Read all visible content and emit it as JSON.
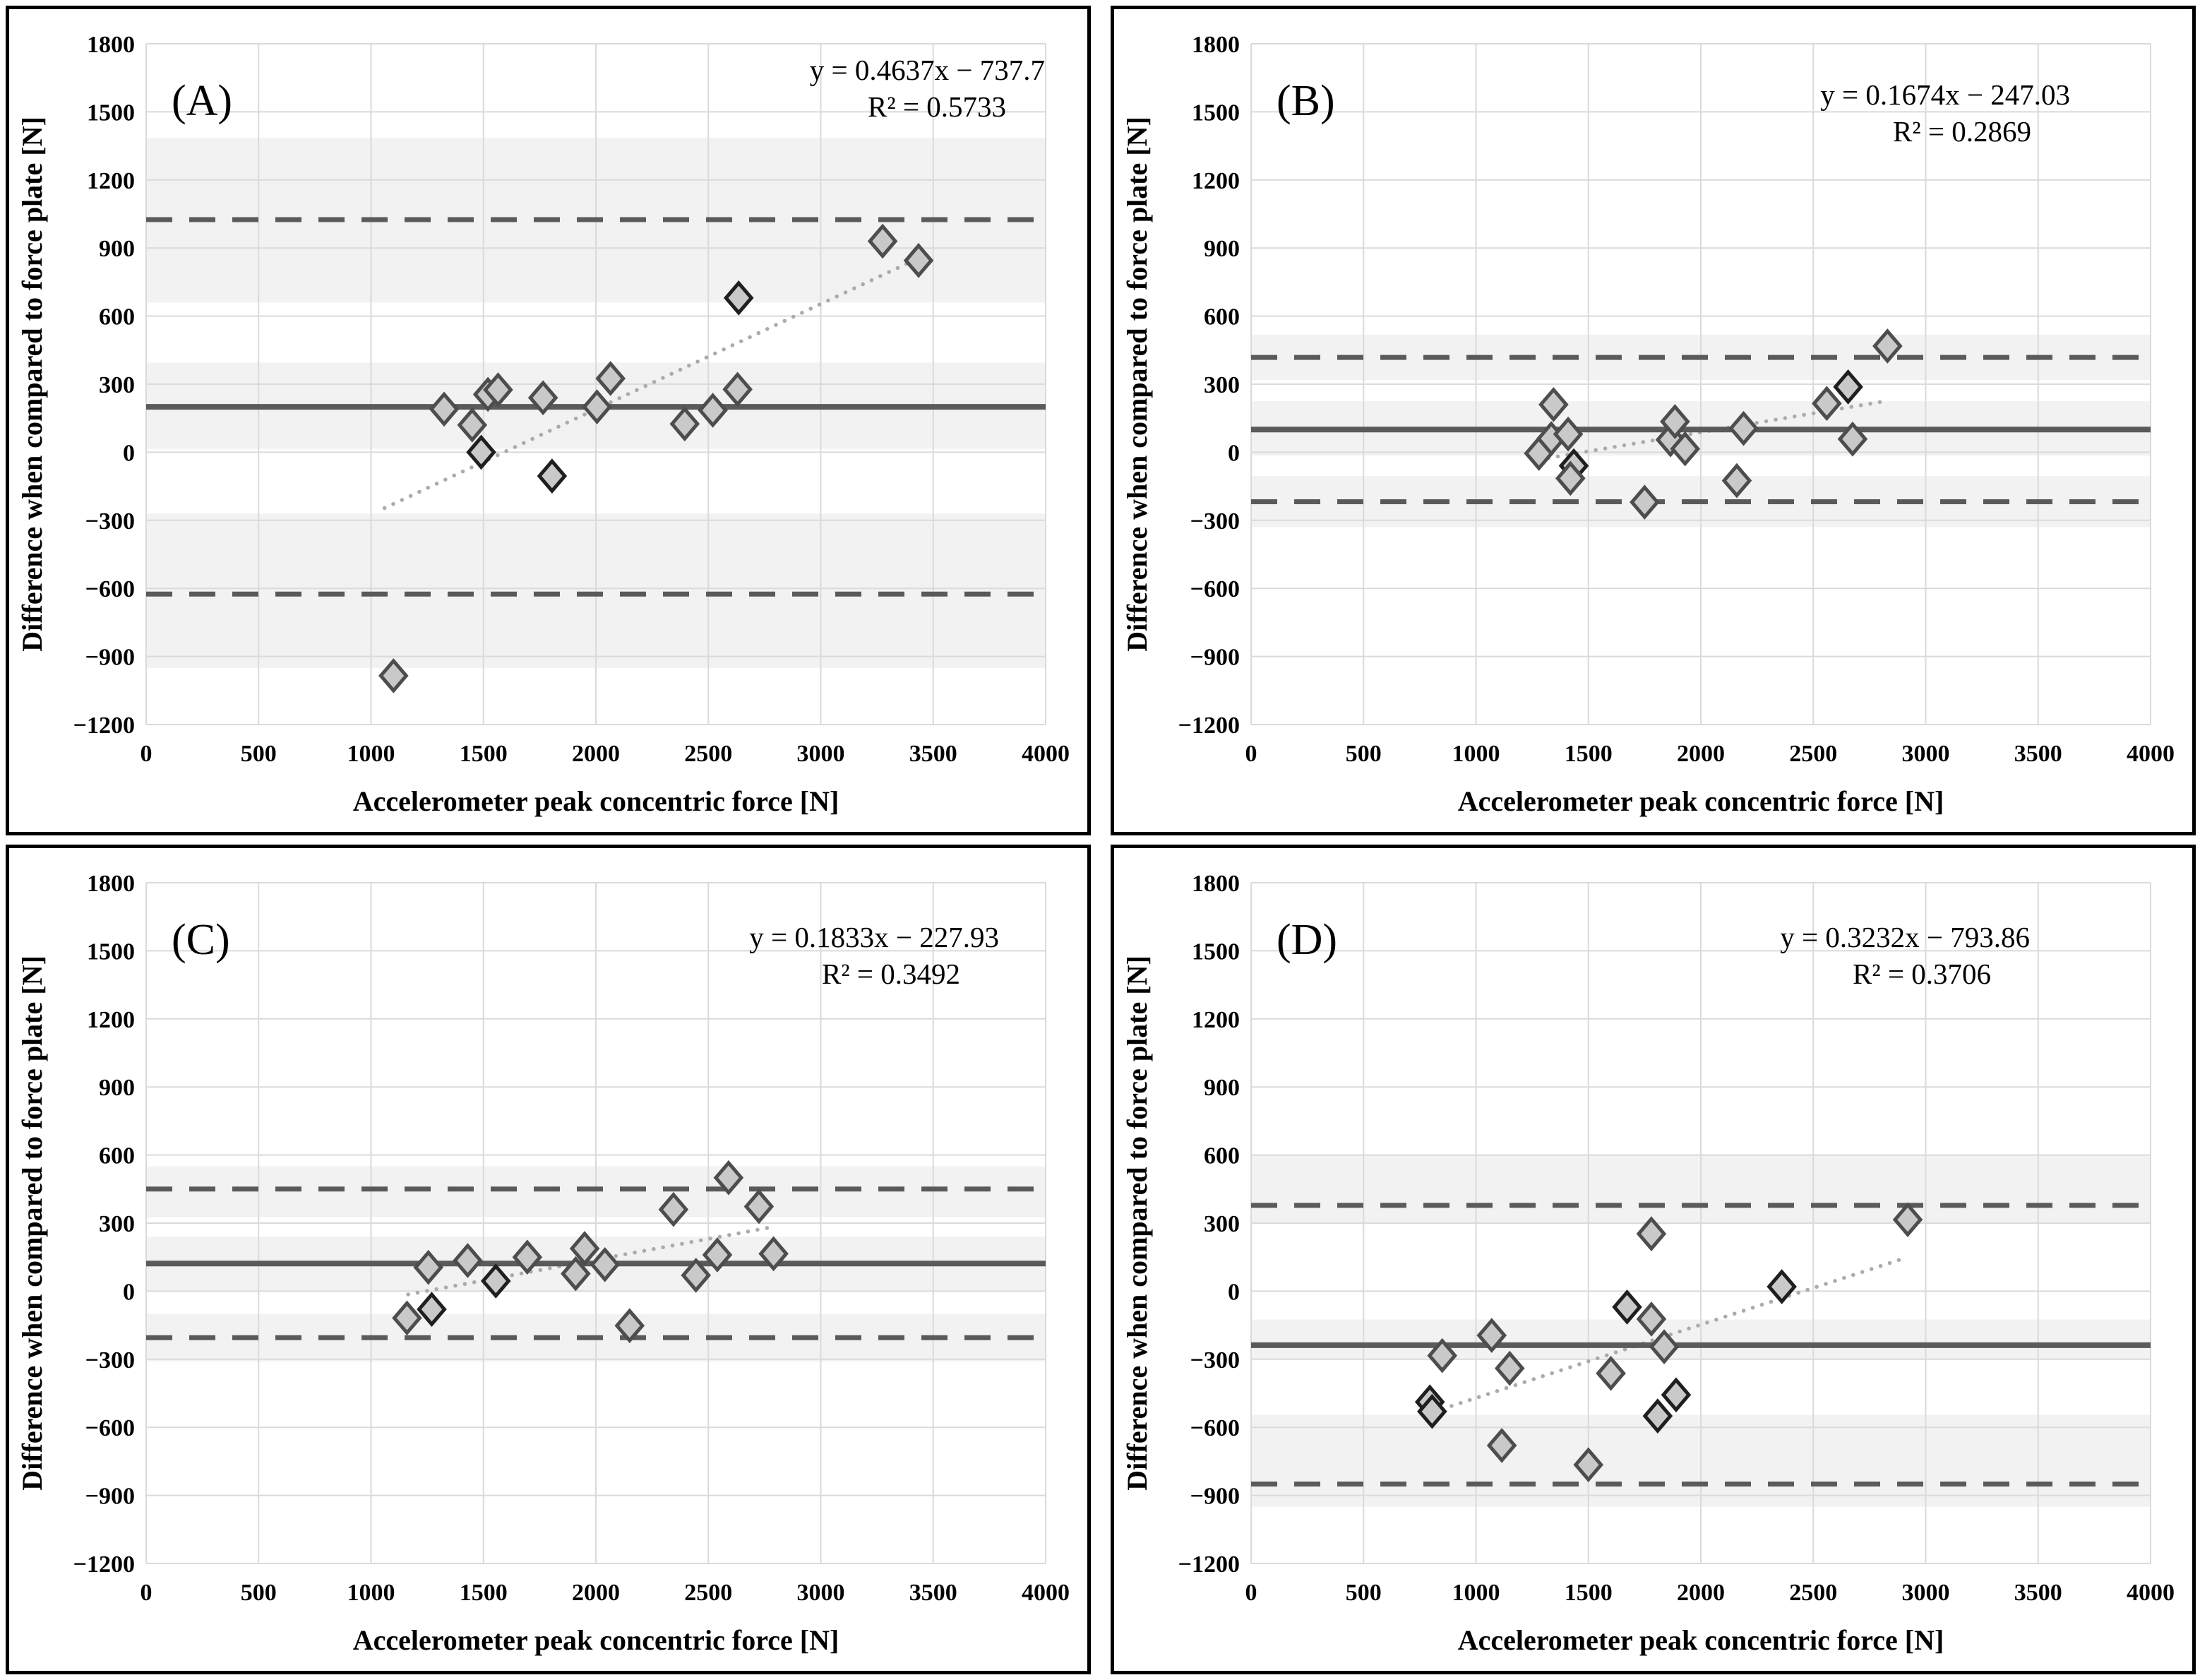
{
  "chart_data": {
    "type": "scatter",
    "title": "",
    "xlabel": "Accelerometer peak concentric force [N]",
    "ylabel": "Difference when compared to force plate [N]",
    "xlim": [
      0,
      4000
    ],
    "ylim": [
      -1200,
      1800
    ],
    "x_ticks": [
      0,
      500,
      1000,
      1500,
      2000,
      2500,
      3000,
      3500,
      4000
    ],
    "y_ticks": [
      1800,
      1500,
      1200,
      900,
      600,
      300,
      0,
      -300,
      -600,
      -900,
      -1200
    ],
    "grid": true,
    "legend": "none",
    "panels": [
      {
        "label": "(A)",
        "equation": "y = 0.4637x − 737.7",
        "r_squared": "R² = 0.5733",
        "slope": 0.4637,
        "intercept": -737.7,
        "trend_x_range": [
          1060,
          3435
        ],
        "bias": 200,
        "loa_upper": 1025,
        "loa_lower": -625,
        "ci_bands": [
          [
            660,
            1385
          ],
          [
            15,
            395
          ],
          [
            -950,
            -270
          ]
        ],
        "eq_right": 1467,
        "eq_baseline": 100,
        "points": [
          [
            1100,
            -985,
            0
          ],
          [
            1325,
            190,
            0
          ],
          [
            1450,
            120,
            0
          ],
          [
            1490,
            0,
            1
          ],
          [
            1520,
            255,
            0
          ],
          [
            1565,
            275,
            0
          ],
          [
            1765,
            240,
            0
          ],
          [
            1805,
            -105,
            1
          ],
          [
            2005,
            200,
            0
          ],
          [
            2065,
            325,
            0
          ],
          [
            2395,
            125,
            0
          ],
          [
            2520,
            185,
            0
          ],
          [
            2630,
            277,
            0
          ],
          [
            2635,
            680,
            1
          ],
          [
            3275,
            930,
            0
          ],
          [
            3435,
            845,
            0
          ]
        ]
      },
      {
        "label": "(B)",
        "equation": "y = 0.1674x − 247.03",
        "r_squared": "R² = 0.2869",
        "slope": 0.1674,
        "intercept": -247.03,
        "trend_x_range": [
          1280,
          2830
        ],
        "bias": 100,
        "loa_upper": 418,
        "loa_lower": -218,
        "ci_bands": [
          [
            318,
            518
          ],
          [
            -15,
            225
          ],
          [
            -330,
            -105
          ]
        ],
        "eq_right": 1354,
        "eq_baseline": 135,
        "points": [
          [
            1280,
            -5,
            0
          ],
          [
            1335,
            60,
            0
          ],
          [
            1345,
            210,
            0
          ],
          [
            1410,
            80,
            0
          ],
          [
            1435,
            -60,
            1
          ],
          [
            1420,
            -115,
            0
          ],
          [
            1750,
            -220,
            0
          ],
          [
            1865,
            55,
            0
          ],
          [
            1885,
            135,
            0
          ],
          [
            1930,
            15,
            0
          ],
          [
            2160,
            -125,
            0
          ],
          [
            2190,
            105,
            0
          ],
          [
            2560,
            215,
            0
          ],
          [
            2655,
            288,
            1
          ],
          [
            2675,
            58,
            0
          ],
          [
            2830,
            468,
            0
          ]
        ]
      },
      {
        "label": "(C)",
        "equation": "y = 0.1833x − 227.93",
        "r_squared": "R² = 0.3492",
        "slope": 0.1833,
        "intercept": -227.93,
        "trend_x_range": [
          1165,
          2800
        ],
        "bias": 122,
        "loa_upper": 450,
        "loa_lower": -205,
        "ci_bands": [
          [
            325,
            550
          ],
          [
            0,
            240
          ],
          [
            -310,
            -100
          ]
        ],
        "eq_right": 1402,
        "eq_baseline": 140,
        "points": [
          [
            1160,
            -118,
            0
          ],
          [
            1255,
            105,
            0
          ],
          [
            1270,
            -80,
            1
          ],
          [
            1430,
            135,
            0
          ],
          [
            1555,
            45,
            1
          ],
          [
            1695,
            150,
            0
          ],
          [
            1910,
            77,
            0
          ],
          [
            1950,
            188,
            0
          ],
          [
            2040,
            117,
            0
          ],
          [
            2150,
            -152,
            0
          ],
          [
            2345,
            360,
            0
          ],
          [
            2445,
            70,
            0
          ],
          [
            2540,
            160,
            0
          ],
          [
            2590,
            500,
            0
          ],
          [
            2725,
            373,
            0
          ],
          [
            2790,
            165,
            0
          ]
        ]
      },
      {
        "label": "(D)",
        "equation": "y = 0.3232x − 793.86",
        "r_squared": "R² = 0.3706",
        "slope": 0.3232,
        "intercept": -793.86,
        "trend_x_range": [
          810,
          2910
        ],
        "bias": -238,
        "loa_upper": 378,
        "loa_lower": -850,
        "ci_bands": [
          [
            295,
            600
          ],
          [
            -300,
            -125
          ],
          [
            -950,
            -545
          ]
        ],
        "eq_right": 1297,
        "eq_baseline": 140,
        "points": [
          [
            795,
            -488,
            1
          ],
          [
            805,
            -530,
            1
          ],
          [
            850,
            -284,
            0
          ],
          [
            1070,
            -195,
            0
          ],
          [
            1115,
            -680,
            0
          ],
          [
            1150,
            -340,
            0
          ],
          [
            1500,
            -765,
            0
          ],
          [
            1600,
            -362,
            0
          ],
          [
            1672,
            -70,
            1
          ],
          [
            1780,
            -123,
            0
          ],
          [
            1780,
            253,
            0
          ],
          [
            1808,
            -550,
            1
          ],
          [
            1837,
            -245,
            0
          ],
          [
            1890,
            -457,
            1
          ],
          [
            2360,
            20,
            1
          ],
          [
            2920,
            315,
            0
          ]
        ]
      }
    ],
    "colors": {
      "background": "#ffffff",
      "panel_border": "#000000",
      "band": "#f2f2f2",
      "grid": "#dadada",
      "loa_line": "#5a5a5a",
      "bias_line": "#5a5a5a",
      "trend_line": "#ababab",
      "marker_fill": "#c9c9c9",
      "marker_stroke": "#4d4d4d",
      "marker_stroke_dark": "#1f1f1f",
      "text": "#000000"
    }
  }
}
